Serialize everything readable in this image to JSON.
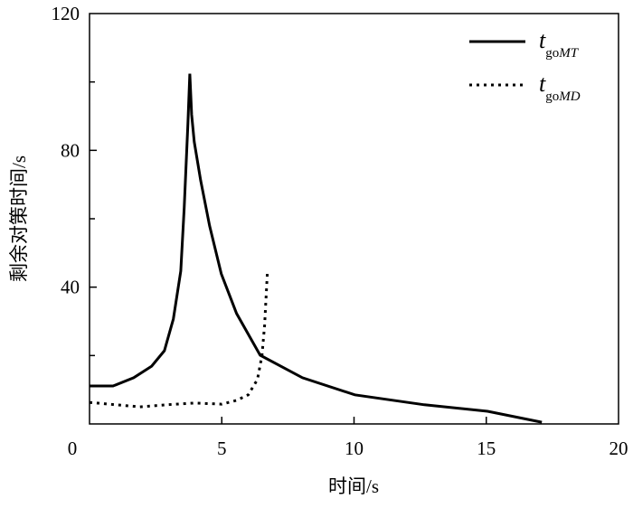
{
  "chart_data": {
    "type": "line",
    "title": "",
    "xlabel": "时间/s",
    "ylabel": "剩余对策时间/s",
    "xlim": [
      0,
      20
    ],
    "ylim": [
      0,
      120
    ],
    "x_ticks": [
      0,
      5,
      10,
      15,
      20
    ],
    "y_ticks": [
      40,
      80,
      120
    ],
    "y_minor_ticks": [
      20,
      60,
      100
    ],
    "grid": false,
    "legend_position": "top-right",
    "series": [
      {
        "name": "t_goMT",
        "legend_main": "t",
        "legend_sub": "go",
        "legend_sub_italic": "MT",
        "style": "solid",
        "color": "#000000",
        "x": [
          0,
          0.89,
          1.67,
          2.35,
          2.83,
          3.17,
          3.45,
          3.58,
          3.72,
          3.79,
          3.86,
          3.96,
          4.2,
          4.54,
          4.98,
          5.56,
          6.45,
          8.05,
          10.03,
          12.66,
          15.05,
          17.1
        ],
        "y": [
          11.1,
          11.1,
          13.5,
          16.9,
          21.4,
          30.7,
          44.7,
          63.2,
          87.8,
          102.4,
          90.5,
          82.5,
          71.2,
          57.9,
          43.9,
          32.3,
          20.1,
          13.5,
          8.5,
          5.6,
          3.7,
          0.5
        ]
      },
      {
        "name": "t_goMD",
        "legend_main": "t",
        "legend_sub": "go",
        "legend_sub_italic": "MD",
        "style": "dotted",
        "color": "#000000",
        "x": [
          0,
          1.9,
          2.9,
          3.96,
          5.0,
          5.56,
          6.0,
          6.35,
          6.52,
          6.62,
          6.72
        ],
        "y": [
          6.3,
          5.0,
          5.6,
          6.1,
          5.8,
          6.9,
          8.5,
          13,
          20,
          28.8,
          43.9
        ]
      }
    ]
  }
}
